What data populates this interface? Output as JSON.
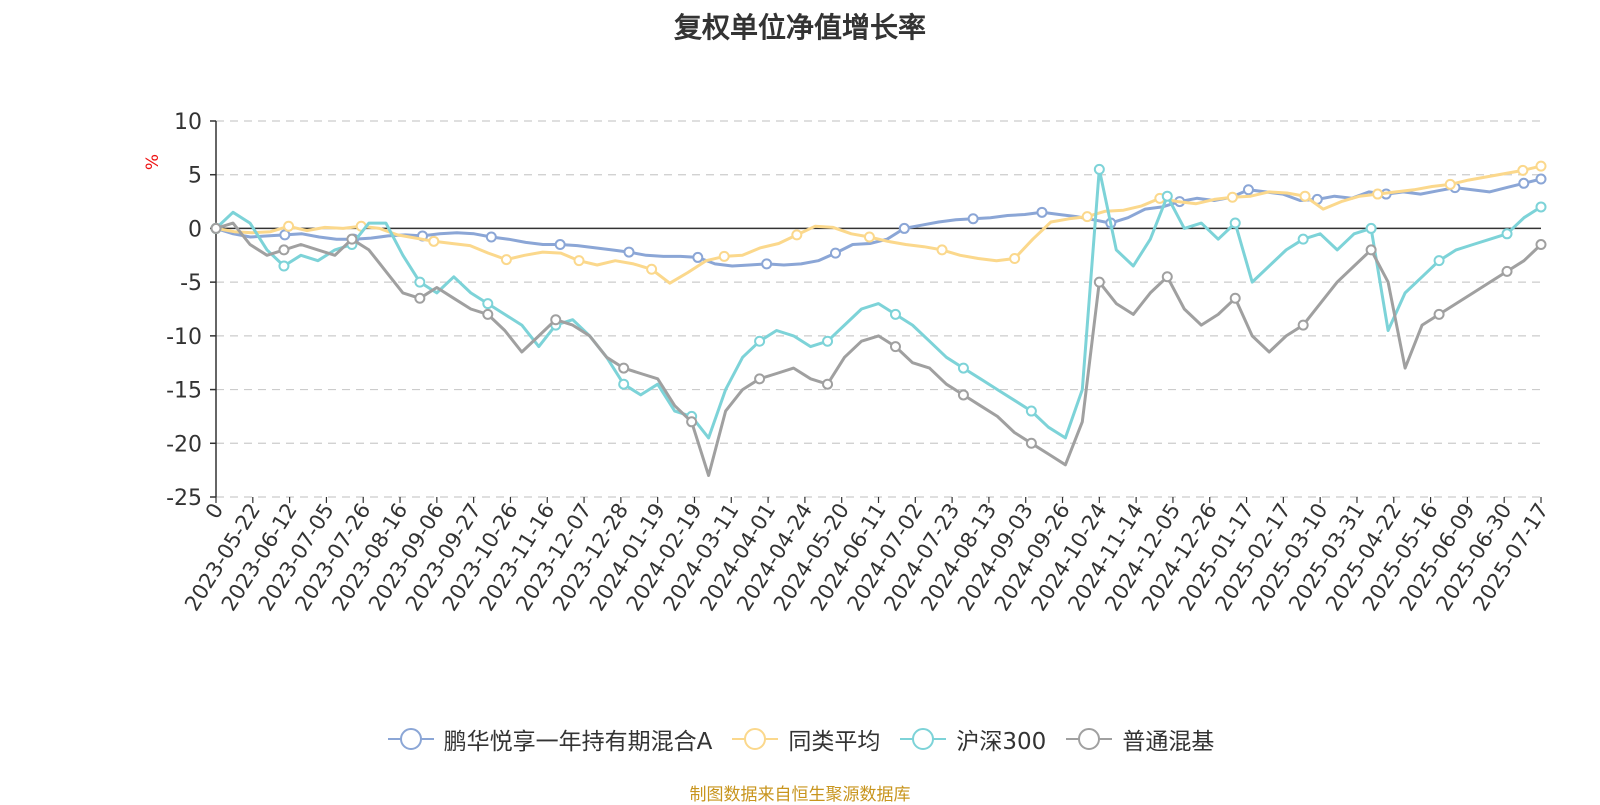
{
  "chart_data": {
    "type": "line",
    "title": "复权单位净值增长率",
    "ylabel": "%",
    "ylim": [
      -25,
      10
    ],
    "yticks": [
      "10",
      "5",
      "0",
      "-5",
      "-10",
      "-15",
      "-20",
      "-25"
    ],
    "x_tick_labels": [
      "0",
      "2023-05-22",
      "2023-06-12",
      "2023-07-05",
      "2023-07-26",
      "2023-08-16",
      "2023-09-06",
      "2023-09-27",
      "2023-10-26",
      "2023-11-16",
      "2023-12-07",
      "2023-12-28",
      "2024-01-19",
      "2024-02-19",
      "2024-03-11",
      "2024-04-01",
      "2024-04-24",
      "2024-05-20",
      "2024-06-11",
      "2024-07-02",
      "2024-07-23",
      "2024-08-13",
      "2024-09-03",
      "2024-09-26",
      "2024-10-24",
      "2024-11-14",
      "2024-12-05",
      "2024-12-26",
      "2025-01-17",
      "2025-02-17",
      "2025-03-10",
      "2025-03-31",
      "2025-04-22",
      "2025-05-16",
      "2025-06-09",
      "2025-06-30",
      "2025-07-17"
    ],
    "grid": true,
    "legend_position": "bottom",
    "series": [
      {
        "name": "鹏华悦享一年持有期混合A",
        "color": "#8ba6d6",
        "values": [
          0,
          -0.5,
          -0.8,
          -0.7,
          -0.6,
          -0.5,
          -0.8,
          -1.0,
          -1.0,
          -0.9,
          -0.7,
          -0.6,
          -0.7,
          -0.5,
          -0.4,
          -0.5,
          -0.8,
          -1.0,
          -1.3,
          -1.5,
          -1.5,
          -1.6,
          -1.8,
          -2.0,
          -2.2,
          -2.5,
          -2.6,
          -2.6,
          -2.7,
          -3.3,
          -3.5,
          -3.4,
          -3.3,
          -3.4,
          -3.3,
          -3.0,
          -2.3,
          -1.5,
          -1.4,
          -1.0,
          0.0,
          0.3,
          0.6,
          0.8,
          0.9,
          1.0,
          1.2,
          1.3,
          1.5,
          1.3,
          1.1,
          0.8,
          0.5,
          1.0,
          1.8,
          2.0,
          2.5,
          2.8,
          2.6,
          2.9,
          3.6,
          3.4,
          3.2,
          2.6,
          2.7,
          3.0,
          2.8,
          3.4,
          3.2,
          3.4,
          3.2,
          3.5,
          3.8,
          3.6,
          3.4,
          3.8,
          4.2,
          4.6
        ]
      },
      {
        "name": "同类平均",
        "color": "#fbd88c",
        "values": [
          0,
          -0.3,
          -0.4,
          -0.3,
          0.2,
          -0.2,
          0.1,
          0.0,
          0.2,
          0.0,
          -0.6,
          -0.9,
          -1.2,
          -1.4,
          -1.6,
          -2.3,
          -2.9,
          -2.5,
          -2.2,
          -2.3,
          -3.0,
          -3.4,
          -3.0,
          -3.3,
          -3.8,
          -5.1,
          -4.1,
          -3.0,
          -2.6,
          -2.5,
          -1.8,
          -1.4,
          -0.6,
          0.2,
          0.1,
          -0.5,
          -0.8,
          -1.2,
          -1.5,
          -1.7,
          -2.0,
          -2.5,
          -2.8,
          -3.0,
          -2.8,
          -1.0,
          0.6,
          0.9,
          1.1,
          1.6,
          1.7,
          2.1,
          2.8,
          2.5,
          2.3,
          2.7,
          2.9,
          3.0,
          3.4,
          3.3,
          3.0,
          1.8,
          2.5,
          3.0,
          3.2,
          3.4,
          3.6,
          3.9,
          4.1,
          4.5,
          4.8,
          5.1,
          5.4,
          5.8
        ]
      },
      {
        "name": "沪深300",
        "color": "#7dd3d8",
        "values": [
          0,
          1.5,
          0.5,
          -2.0,
          -3.5,
          -2.5,
          -3.0,
          -2.0,
          -1.5,
          0.5,
          0.5,
          -2.5,
          -5.0,
          -6.0,
          -4.5,
          -6.0,
          -7.0,
          -8.0,
          -9.0,
          -11.0,
          -9.0,
          -8.5,
          -10.0,
          -12.0,
          -14.5,
          -15.5,
          -14.5,
          -17.0,
          -17.5,
          -19.5,
          -15.0,
          -12.0,
          -10.5,
          -9.5,
          -10.0,
          -11.0,
          -10.5,
          -9.0,
          -7.5,
          -7.0,
          -8.0,
          -9.0,
          -10.5,
          -12.0,
          -13.0,
          -14.0,
          -15.0,
          -16.0,
          -17.0,
          -18.5,
          -19.5,
          -15.0,
          5.5,
          -2.0,
          -3.5,
          -1.0,
          3.0,
          0.0,
          0.5,
          -1.0,
          0.5,
          -5.0,
          -3.5,
          -2.0,
          -1.0,
          -0.5,
          -2.0,
          -0.5,
          0.0,
          -9.5,
          -6.0,
          -4.5,
          -3.0,
          -2.0,
          -1.5,
          -1.0,
          -0.5,
          1.0,
          2.0
        ]
      },
      {
        "name": "普通混基",
        "color": "#a0a0a0",
        "values": [
          0,
          0.5,
          -1.5,
          -2.5,
          -2.0,
          -1.5,
          -2.0,
          -2.5,
          -1.0,
          -2.0,
          -4.0,
          -6.0,
          -6.5,
          -5.5,
          -6.5,
          -7.5,
          -8.0,
          -9.5,
          -11.5,
          -10.0,
          -8.5,
          -9.0,
          -10.0,
          -12.0,
          -13.0,
          -13.5,
          -14.0,
          -16.5,
          -18.0,
          -23.0,
          -17.0,
          -15.0,
          -14.0,
          -13.5,
          -13.0,
          -14.0,
          -14.5,
          -12.0,
          -10.5,
          -10.0,
          -11.0,
          -12.5,
          -13.0,
          -14.5,
          -15.5,
          -16.5,
          -17.5,
          -19.0,
          -20.0,
          -21.0,
          -22.0,
          -18.0,
          -5.0,
          -7.0,
          -8.0,
          -6.0,
          -4.5,
          -7.5,
          -9.0,
          -8.0,
          -6.5,
          -10.0,
          -11.5,
          -10.0,
          -9.0,
          -7.0,
          -5.0,
          -3.5,
          -2.0,
          -5.0,
          -13.0,
          -9.0,
          -8.0,
          -7.0,
          -6.0,
          -5.0,
          -4.0,
          -3.0,
          -1.5
        ]
      }
    ]
  },
  "footer": {
    "source": "制图数据来自恒生聚源数据库"
  }
}
